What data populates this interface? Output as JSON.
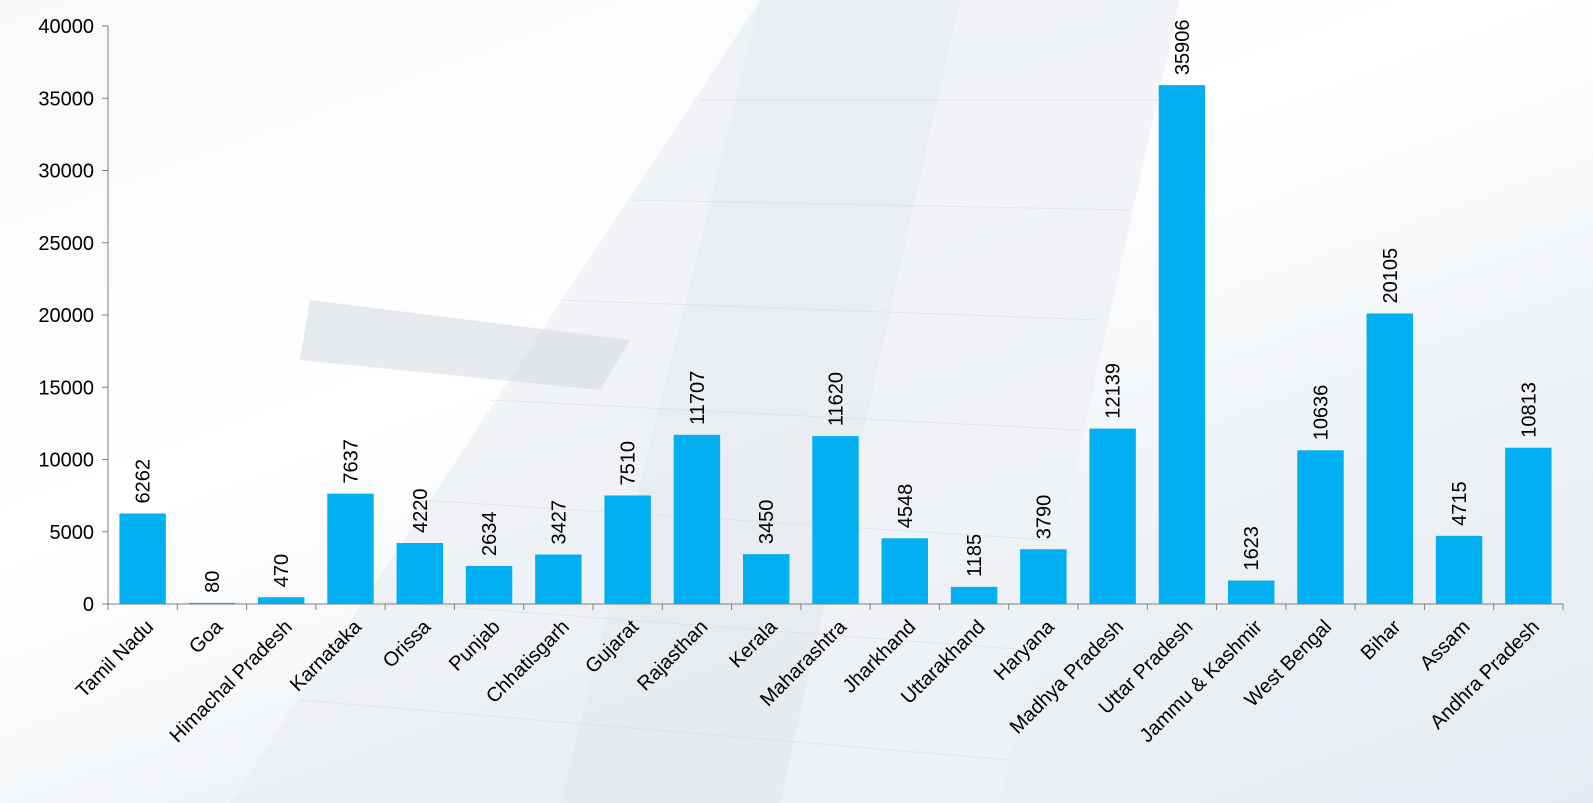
{
  "chart_data": {
    "type": "bar",
    "title": "",
    "xlabel": "",
    "ylabel": "",
    "categories": [
      "Tamil Nadu",
      "Goa",
      "Himachal Pradesh",
      "Karnataka",
      "Orissa",
      "Punjab",
      "Chhatisgarh",
      "Gujarat",
      "Rajasthan",
      "Kerala",
      "Maharashtra",
      "Jharkhand",
      "Uttarakhand",
      "Haryana",
      "Madhya Pradesh",
      "Uttar Pradesh",
      "Jammu & Kashmir",
      "West Bengal",
      "Bihar",
      "Assam",
      "Andhra Pradesh"
    ],
    "values": [
      6262,
      80,
      470,
      7637,
      4220,
      2634,
      3427,
      7510,
      11707,
      3450,
      11620,
      4548,
      1185,
      3790,
      12139,
      35906,
      1623,
      10636,
      20105,
      4715,
      10813
    ],
    "ylim": [
      0,
      40000
    ],
    "yticks": [
      0,
      5000,
      10000,
      15000,
      20000,
      25000,
      30000,
      35000,
      40000
    ],
    "grid": false,
    "legend": "none",
    "bar_color": "#00B0F0",
    "axis_color": "#7F7F7F"
  }
}
